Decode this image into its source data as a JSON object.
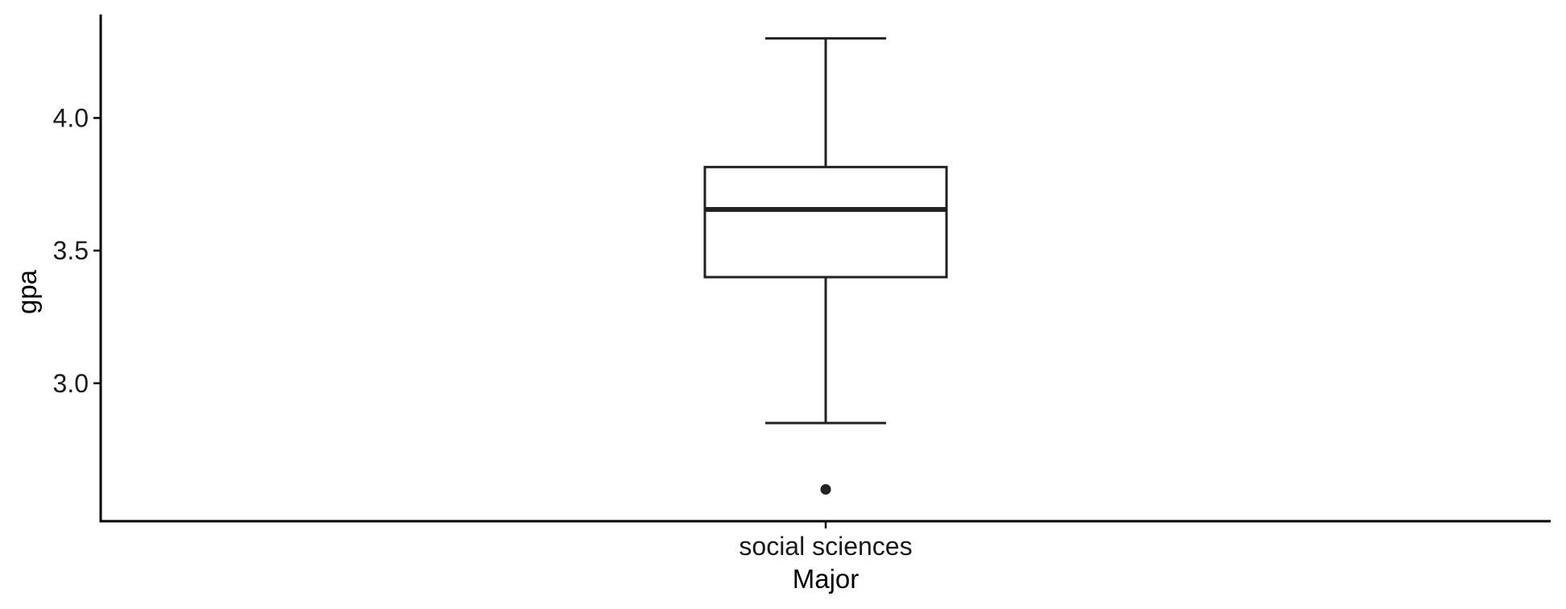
{
  "chart_data": {
    "type": "boxplot",
    "title": "",
    "xlabel": "Major",
    "ylabel": "gpa",
    "categories": [
      "social sciences"
    ],
    "boxes": [
      {
        "category": "social sciences",
        "whisker_low": 2.85,
        "q1": 3.4,
        "median": 3.655,
        "q3": 3.815,
        "whisker_high": 4.3,
        "outliers": [
          2.6
        ]
      }
    ],
    "ylim": [
      2.48,
      4.39
    ],
    "yticks": [
      3.0,
      3.5,
      4.0
    ],
    "ytick_labels": [
      "3.0",
      "3.5",
      "4.0"
    ],
    "grid": false,
    "legend": "none",
    "colors": {
      "box_fill": "#ffffff",
      "box_stroke": "#222222",
      "axis": "#000000"
    }
  }
}
